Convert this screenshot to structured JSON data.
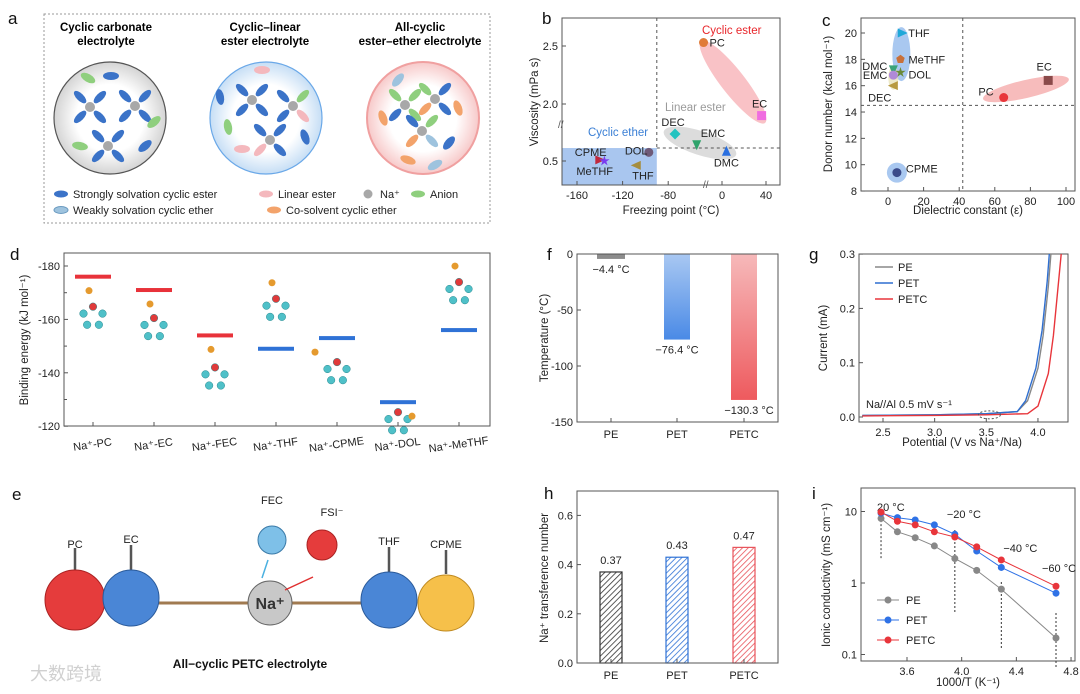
{
  "panel_labels": {
    "a": "a",
    "b": "b",
    "c": "c",
    "d": "d",
    "e": "e",
    "f": "f",
    "g": "g",
    "h": "h",
    "i": "i"
  },
  "panel_a": {
    "titles": [
      [
        "Cyclic carbonate",
        "electrolyte"
      ],
      [
        "Cyclic–linear",
        "ester electrolyte"
      ],
      [
        "All-cyclic",
        "ester–ether electrolyte"
      ]
    ],
    "legend": [
      {
        "label": "Strongly solvation cyclic ester",
        "color": "#3b73c8"
      },
      {
        "label": "Linear ester",
        "color": "#f4b8bd"
      },
      {
        "label": "Na⁺",
        "color": "#a8a8a8"
      },
      {
        "label": "Anion",
        "color": "#8fcf7e"
      },
      {
        "label": "Weakly solvation cyclic ether",
        "color": "#9ec3de"
      },
      {
        "label": "Co-solvent cyclic ether",
        "color": "#f3a36b"
      }
    ]
  },
  "panel_e": {
    "molecules": {
      "PC": "PC",
      "EC": "EC",
      "THF": "THF",
      "CPME": "CPME",
      "FEC": "FEC",
      "FSI": "FSI⁻",
      "Na": "Na⁺"
    },
    "caption": "All−cyclic PETC electrolyte"
  },
  "watermark": "大数跨境",
  "chart_data": [
    {
      "panel": "b",
      "type": "scatter",
      "xlabel": "Freezing point (°C)",
      "ylabel": "Viscosity (mPa s)",
      "xticks": [
        -160,
        -120,
        -80,
        0,
        40
      ],
      "xtick_labels": [
        "-160",
        "-120",
        "-80",
        "0",
        "40"
      ],
      "yticks": [
        0.5,
        2.0,
        2.5
      ],
      "ytick_labels": [
        "0.5",
        "2.0",
        "2.5"
      ],
      "axis_breaks": "both axes broken",
      "reference_lines": {
        "x": -90,
        "y": 0.62
      },
      "groups": [
        {
          "name": "Cyclic ester",
          "color": "#e8262b"
        },
        {
          "name": "Linear ester",
          "color": "#9a9a9a"
        },
        {
          "name": "Cyclic ether",
          "color": "#3a7fd5"
        }
      ],
      "points": [
        {
          "label": "PC",
          "x": -49,
          "y": 2.53,
          "color": "#e07b39",
          "marker": "circle"
        },
        {
          "label": "EC",
          "x": 36,
          "y": 1.9,
          "color": "#f06ce0",
          "marker": "square"
        },
        {
          "label": "DEC",
          "x": -74,
          "y": 0.75,
          "color": "#22c3c0",
          "marker": "diamond"
        },
        {
          "label": "EMC",
          "x": -55,
          "y": 0.65,
          "color": "#2fa36b",
          "marker": "triangle-down"
        },
        {
          "label": "DMC",
          "x": 4,
          "y": 0.59,
          "color": "#2a6fe0",
          "marker": "triangle-up"
        },
        {
          "label": "CPME",
          "x": -140,
          "y": 0.51,
          "color": "#c0283c",
          "marker": "triangle-right"
        },
        {
          "label": "MeTHF",
          "x": -136,
          "y": 0.5,
          "color": "#7a3cf0",
          "marker": "star"
        },
        {
          "label": "DOL",
          "x": -97,
          "y": 0.58,
          "color": "#6e5a78",
          "marker": "circle"
        },
        {
          "label": "THF",
          "x": -108,
          "y": 0.46,
          "color": "#a58d3f",
          "marker": "triangle-left"
        }
      ]
    },
    {
      "panel": "c",
      "type": "scatter",
      "xlabel": "Dielectric constant (ε)",
      "ylabel": "Donor number (kcal mol⁻¹)",
      "xticks": [
        0,
        20,
        40,
        60,
        80,
        100
      ],
      "xtick_labels": [
        "0",
        "20",
        "40",
        "60",
        "80",
        "100"
      ],
      "yticks": [
        8,
        10,
        12,
        14,
        16,
        18,
        20
      ],
      "ytick_labels": [
        "8",
        "10",
        "12",
        "14",
        "16",
        "18",
        "20"
      ],
      "xlim": [
        -12,
        105
      ],
      "ylim": [
        8,
        21
      ],
      "reference_lines": {
        "x": 42,
        "y": 14.5
      },
      "points": [
        {
          "label": "THF",
          "x": 8,
          "y": 20,
          "color": "#1fa8d8",
          "marker": "triangle-right"
        },
        {
          "label": "MeTHF",
          "x": 7,
          "y": 18,
          "color": "#c8703a",
          "marker": "pentagon"
        },
        {
          "label": "DMC",
          "x": 3,
          "y": 17.2,
          "color": "#3aa37a",
          "marker": "triangle-down"
        },
        {
          "label": "DOL",
          "x": 7,
          "y": 17,
          "color": "#6a8a3a",
          "marker": "star"
        },
        {
          "label": "EMC",
          "x": 3,
          "y": 16.8,
          "color": "#b08ad8",
          "marker": "circle"
        },
        {
          "label": "DEC",
          "x": 3,
          "y": 16,
          "color": "#b89a40",
          "marker": "triangle-left"
        },
        {
          "label": "PC",
          "x": 65,
          "y": 15.1,
          "color": "#e8363b",
          "marker": "circle"
        },
        {
          "label": "EC",
          "x": 90,
          "y": 16.4,
          "color": "#8a4a4a",
          "marker": "square"
        },
        {
          "label": "CPME",
          "x": 5,
          "y": 9.4,
          "color": "#3a4a8a",
          "marker": "circle"
        }
      ]
    },
    {
      "panel": "d",
      "type": "bar",
      "ylabel": "Binding energy (kJ mol⁻¹)",
      "categories": [
        "Na⁺-PC",
        "Na⁺-EC",
        "Na⁺-FEC",
        "Na⁺-THF",
        "Na⁺-CPME",
        "Na⁺-DOL",
        "Na⁺-MeTHF"
      ],
      "values": [
        -176,
        -171,
        -154,
        -149,
        -153,
        -129,
        -156
      ],
      "colors": [
        "#e8323a",
        "#e8323a",
        "#e8323a",
        "#2f72d6",
        "#2f72d6",
        "#2f72d6",
        "#2f72d6"
      ],
      "yticks": [
        -180,
        -160,
        -140,
        -120
      ],
      "ytick_labels": [
        "-180",
        "-160",
        "-140",
        "-120"
      ],
      "ylim": [
        -185,
        -120
      ]
    },
    {
      "panel": "f",
      "type": "bar",
      "ylabel": "Temperature (°C)",
      "categories": [
        "PE",
        "PET",
        "PETC"
      ],
      "values": [
        -4.4,
        -76.4,
        -130.3
      ],
      "value_labels": [
        "−4.4 °C",
        "−76.4 °C",
        "−130.3 °C"
      ],
      "colors": [
        "#8c8c8c",
        "#4a8ae6",
        "#ee5a5e"
      ],
      "yticks": [
        0,
        -50,
        -100,
        -150
      ],
      "ytick_labels": [
        "0",
        "-50",
        "-100",
        "-150"
      ],
      "ylim": [
        -150,
        0
      ]
    },
    {
      "panel": "g",
      "type": "line",
      "xlabel": "Potential (V vs Na⁺/Na)",
      "ylabel": "Current (mA)",
      "xticks": [
        2.5,
        3.0,
        3.5,
        4.0
      ],
      "xtick_labels": [
        "2.5",
        "3.0",
        "3.5",
        "4.0"
      ],
      "yticks": [
        0.0,
        0.1,
        0.2,
        0.3
      ],
      "ytick_labels": [
        "0.0",
        "0.1",
        "0.2",
        "0.3"
      ],
      "xlim": [
        2.3,
        4.3
      ],
      "ylim": [
        -0.01,
        0.3
      ],
      "annotation": "Na//Al  0.5 mV s⁻¹",
      "legend_position": "top-left",
      "series": [
        {
          "name": "PE",
          "color": "#888888",
          "points": [
            [
              2.3,
              0.003
            ],
            [
              3.0,
              0.004
            ],
            [
              3.5,
              0.006
            ],
            [
              3.8,
              0.01
            ],
            [
              3.9,
              0.03
            ],
            [
              4.0,
              0.09
            ],
            [
              4.05,
              0.15
            ],
            [
              4.1,
              0.24
            ],
            [
              4.125,
              0.3
            ]
          ]
        },
        {
          "name": "PET",
          "color": "#2f6fd0",
          "points": [
            [
              2.3,
              0.003
            ],
            [
              3.0,
              0.004
            ],
            [
              3.5,
              0.006
            ],
            [
              3.8,
              0.01
            ],
            [
              3.88,
              0.03
            ],
            [
              3.98,
              0.09
            ],
            [
              4.04,
              0.16
            ],
            [
              4.09,
              0.25
            ],
            [
              4.11,
              0.3
            ]
          ]
        },
        {
          "name": "PETC",
          "color": "#e8353b",
          "points": [
            [
              2.3,
              0.002
            ],
            [
              3.0,
              0.003
            ],
            [
              3.5,
              0.004
            ],
            [
              3.9,
              0.006
            ],
            [
              4.0,
              0.02
            ],
            [
              4.1,
              0.08
            ],
            [
              4.15,
              0.15
            ],
            [
              4.2,
              0.25
            ],
            [
              4.225,
              0.3
            ]
          ]
        }
      ]
    },
    {
      "panel": "h",
      "type": "bar",
      "ylabel": "Na⁺ transference number",
      "categories": [
        "PE",
        "PET",
        "PETC"
      ],
      "values": [
        0.37,
        0.43,
        0.47
      ],
      "value_labels": [
        "0.37",
        "0.43",
        "0.47"
      ],
      "colors": [
        "#333333",
        "#2f72d6",
        "#e8535a"
      ],
      "yticks": [
        0.0,
        0.2,
        0.4,
        0.6
      ],
      "ytick_labels": [
        "0.0",
        "0.2",
        "0.4",
        "0.6"
      ],
      "ylim": [
        0,
        0.7
      ]
    },
    {
      "panel": "i",
      "type": "line",
      "xlabel": "1000/T (K⁻¹)",
      "ylabel": "Ionic conductivity (mS cm⁻¹)",
      "yscale": "log",
      "xticks": [
        3.6,
        4.0,
        4.4,
        4.8
      ],
      "xtick_labels": [
        "3.6",
        "4.0",
        "4.4",
        "4.8"
      ],
      "yticks": [
        0.1,
        1,
        10
      ],
      "ytick_labels": [
        "0.1",
        "1",
        "10"
      ],
      "x": [
        3.41,
        3.53,
        3.66,
        3.8,
        3.95,
        4.11,
        4.29,
        4.69
      ],
      "annotations": [
        {
          "x": 3.41,
          "label": "20 °C"
        },
        {
          "x": 3.95,
          "label": "−20 °C"
        },
        {
          "x": 4.29,
          "label": "−40 °C"
        },
        {
          "x": 4.69,
          "label": "−60 °C"
        }
      ],
      "legend_position": "bottom-left",
      "series": [
        {
          "name": "PE",
          "color": "#888888",
          "values": [
            8,
            5.2,
            4.3,
            3.3,
            2.2,
            1.5,
            0.82,
            0.17
          ]
        },
        {
          "name": "PET",
          "color": "#2f72e6",
          "values": [
            9.5,
            8.2,
            7.6,
            6.5,
            4.8,
            2.8,
            1.65,
            0.72
          ]
        },
        {
          "name": "PETC",
          "color": "#e8353b",
          "values": [
            9.8,
            7.3,
            6.5,
            5.2,
            4.4,
            3.2,
            2.1,
            0.9
          ]
        }
      ]
    }
  ]
}
